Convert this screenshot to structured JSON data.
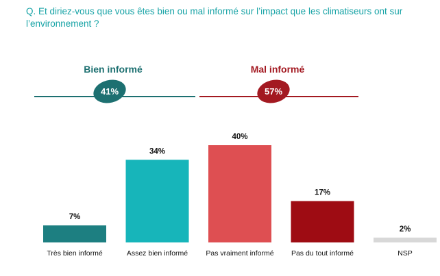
{
  "question": "Q. Et diriez-vous que vous êtes bien ou mal informé sur l’impact que les climatiseurs ont sur l’environnement ?",
  "groups": {
    "bien": {
      "label": "Bien informé",
      "value": "41%",
      "color": "#1D7071"
    },
    "mal": {
      "label": "Mal informé",
      "value": "57%",
      "color": "#A31921"
    }
  },
  "chart_data": {
    "type": "bar",
    "categories": [
      "Très bien informé",
      "Assez bien informé",
      "Pas vraiment informé",
      "Pas du tout informé",
      "NSP"
    ],
    "values": [
      7,
      34,
      40,
      17,
      2
    ],
    "value_labels": [
      "7%",
      "34%",
      "40%",
      "17%",
      "2%"
    ],
    "colors": [
      "#1D7F81",
      "#17B5BA",
      "#DE4F52",
      "#9E0C13",
      "#D8D8D8"
    ],
    "ylim": [
      0,
      40
    ],
    "grid": false
  }
}
